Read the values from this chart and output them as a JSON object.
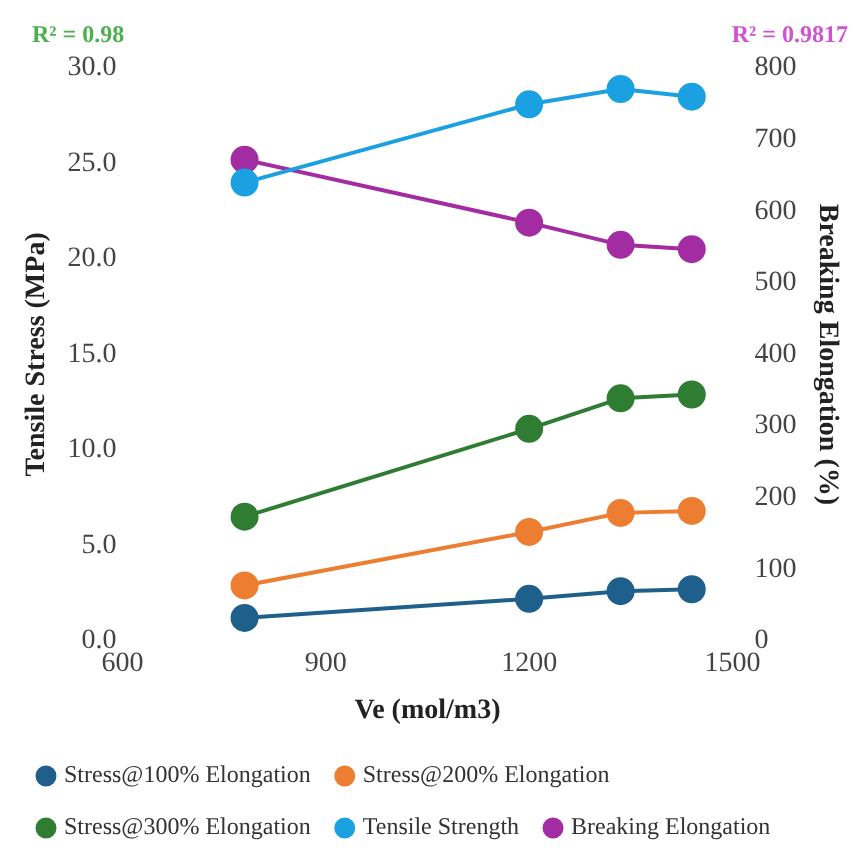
{
  "chart_data": {
    "type": "scatter",
    "xlabel": "Ve (mol/m3)",
    "ylabel": "Tensile Stress (MPa)",
    "y2label": "Breaking Elongation (%)",
    "annotations": [
      "R² = 0.98",
      "R² = 0.9817"
    ],
    "marker": "circle",
    "line_style": "solid",
    "legend": "bottom",
    "grid": false,
    "xlim": [
      600,
      1500
    ],
    "xticks": [
      600,
      900,
      1200,
      1500
    ],
    "ylim": [
      0,
      30
    ],
    "yticks": [
      {
        "value": 0,
        "label": "0.0"
      },
      {
        "value": 5,
        "label": "5.0"
      },
      {
        "value": 10,
        "label": "10.0"
      },
      {
        "value": 15,
        "label": "15.0"
      },
      {
        "value": 20,
        "label": "20.0"
      },
      {
        "value": 25,
        "label": "25.0"
      },
      {
        "value": 30,
        "label": "30.0"
      }
    ],
    "y2lim": [
      0,
      800
    ],
    "y2ticks": [
      0,
      100,
      200,
      300,
      400,
      500,
      600,
      700,
      800
    ],
    "x": [
      780,
      1200,
      1335,
      1440
    ],
    "series": [
      {
        "name": "Stress@100% Elongation",
        "type": "line",
        "color": "#1f5f8b",
        "values": [
          1.2,
          2.2,
          2.6,
          2.7
        ]
      },
      {
        "name": "Stress@200% Elongation",
        "type": "line",
        "color": "#ed7d31",
        "values": [
          2.9,
          5.7,
          6.7,
          6.8
        ]
      },
      {
        "name": "Stress@300% Elongation",
        "type": "line",
        "color": "#2e7d32",
        "values": [
          6.5,
          11.1,
          12.7,
          12.9
        ]
      },
      {
        "name": "Tensile Strength",
        "type": "line",
        "color": "#1ba1e2",
        "values": [
          24.0,
          28.1,
          28.9,
          28.5
        ]
      },
      {
        "name": "Breaking Elongation",
        "type": "line",
        "color": "#a32ca3",
        "axis": "y2",
        "values": [
          672,
          584,
          553,
          547
        ]
      }
    ]
  }
}
